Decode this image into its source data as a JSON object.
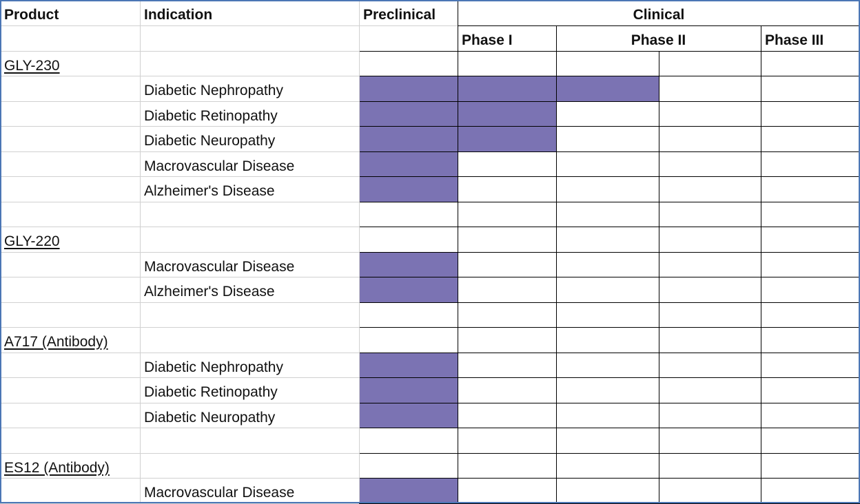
{
  "header": {
    "product": "Product",
    "indication": "Indication",
    "preclinical": "Preclinical",
    "clinical": "Clinical",
    "phase1": "Phase I",
    "phase2": "Phase II",
    "phase3": "Phase III"
  },
  "colors": {
    "progress_fill": "#7b73b3",
    "grid_line": "#d0d0d0",
    "grid_line_dark": "#000000",
    "outer_border": "#4b76b5"
  },
  "stages": [
    "Preclinical",
    "Phase I",
    "Phase II (early)",
    "Phase II (late)",
    "Phase III"
  ],
  "rows": [
    {
      "product": "GLY-230",
      "indication": "",
      "stages_completed": 0
    },
    {
      "product": "",
      "indication": "Diabetic Nephropathy",
      "stages_completed": 3
    },
    {
      "product": "",
      "indication": "Diabetic Retinopathy",
      "stages_completed": 2
    },
    {
      "product": "",
      "indication": "Diabetic Neuropathy",
      "stages_completed": 2
    },
    {
      "product": "",
      "indication": "Macrovascular Disease",
      "stages_completed": 1
    },
    {
      "product": "",
      "indication": "Alzheimer's Disease",
      "stages_completed": 1
    },
    {
      "product": "",
      "indication": "",
      "stages_completed": 0
    },
    {
      "product": "GLY-220",
      "indication": "",
      "stages_completed": 0
    },
    {
      "product": "",
      "indication": "Macrovascular Disease",
      "stages_completed": 1
    },
    {
      "product": "",
      "indication": "Alzheimer's Disease",
      "stages_completed": 1
    },
    {
      "product": "",
      "indication": "",
      "stages_completed": 0
    },
    {
      "product": "A717 (Antibody)",
      "indication": "",
      "stages_completed": 0
    },
    {
      "product": "",
      "indication": "Diabetic Nephropathy",
      "stages_completed": 1
    },
    {
      "product": "",
      "indication": "Diabetic Retinopathy",
      "stages_completed": 1
    },
    {
      "product": "",
      "indication": "Diabetic Neuropathy",
      "stages_completed": 1
    },
    {
      "product": "",
      "indication": "",
      "stages_completed": 0
    },
    {
      "product": "ES12 (Antibody)",
      "indication": "",
      "stages_completed": 0
    },
    {
      "product": "",
      "indication": "Macrovascular Disease",
      "stages_completed": 1
    }
  ]
}
